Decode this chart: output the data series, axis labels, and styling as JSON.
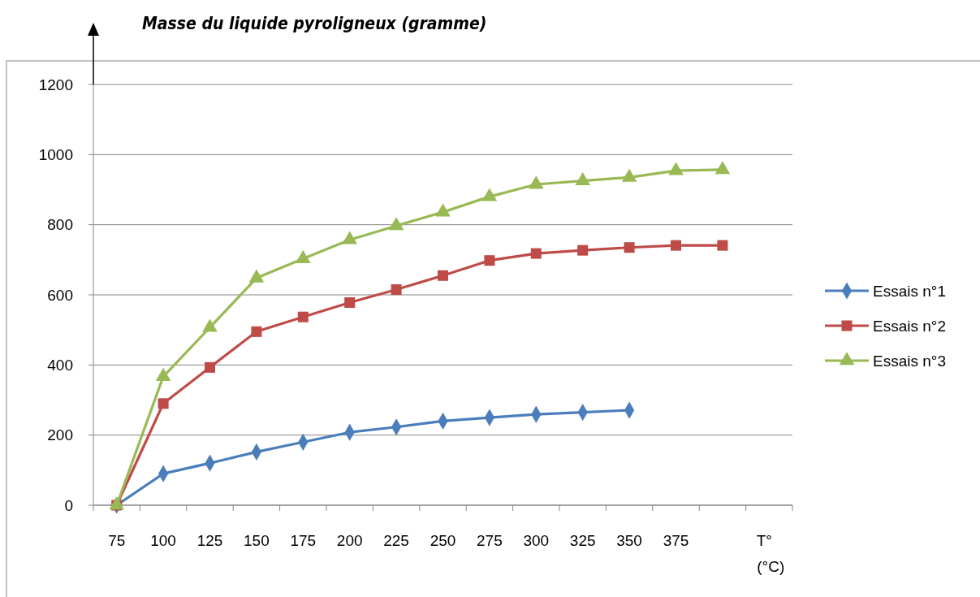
{
  "chart_data": {
    "type": "line",
    "ylabel": "Masse du liquide pyroligneux (gramme)",
    "xlabel": "T° (°C)",
    "categories": [
      "75",
      "100",
      "125",
      "150",
      "175",
      "200",
      "225",
      "250",
      "275",
      "300",
      "325",
      "350",
      "375",
      null
    ],
    "ylim": [
      0,
      1200
    ],
    "yticks": [
      0,
      200,
      400,
      600,
      800,
      1000,
      1200
    ],
    "grid": "y",
    "legend": "right",
    "series": [
      {
        "name": "Essais n°1",
        "color": "#4a7ebb",
        "marker": "diamond",
        "values": [
          0,
          90,
          120,
          152,
          180,
          208,
          223,
          240,
          250,
          259,
          265,
          271,
          null,
          null
        ]
      },
      {
        "name": "Essais n°2",
        "color": "#be4b48",
        "marker": "square",
        "values": [
          0,
          290,
          393,
          495,
          537,
          578,
          615,
          655,
          698,
          718,
          727,
          735,
          741,
          741
        ]
      },
      {
        "name": "Essais n°3",
        "color": "#98b954",
        "marker": "triangle",
        "values": [
          0,
          367,
          507,
          648,
          703,
          757,
          797,
          836,
          880,
          915,
          925,
          935,
          954,
          957
        ]
      }
    ]
  }
}
